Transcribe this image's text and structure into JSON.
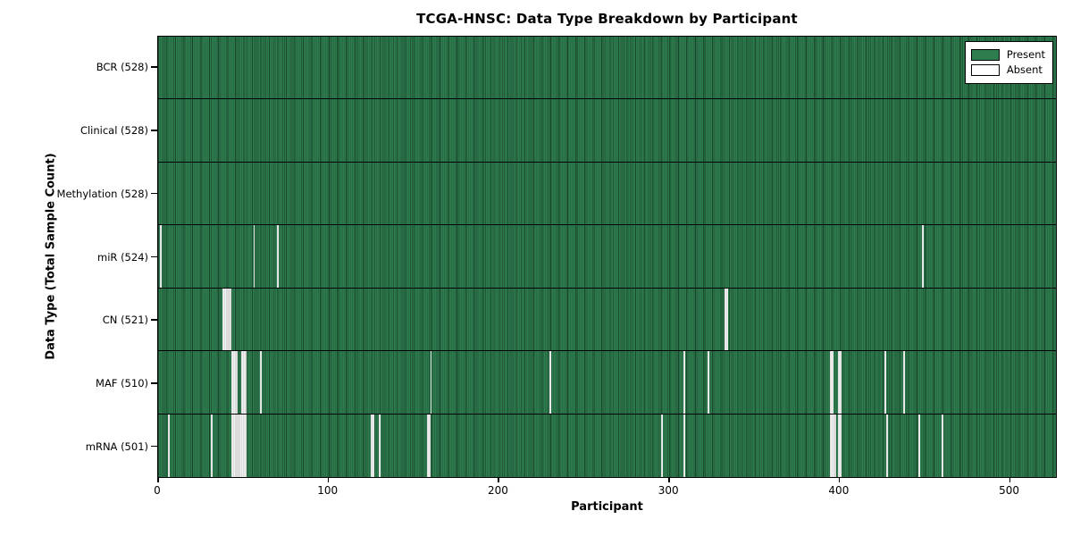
{
  "title": "TCGA-HNSC: Data Type Breakdown by Participant",
  "xlabel": "Participant",
  "ylabel": "Data Type (Total Sample Count)",
  "legend": {
    "present_label": "Present",
    "absent_label": "Absent"
  },
  "colors": {
    "present": "#2e7d4f",
    "absent": "#ffffff",
    "axis": "#000000",
    "legend_present_swatch": "#2e7d4f",
    "legend_absent_swatch": "#ffffff"
  },
  "chart_data": {
    "type": "heatmap",
    "title": "TCGA-HNSC: Data Type Breakdown by Participant",
    "xlabel": "Participant",
    "ylabel": "Data Type (Total Sample Count)",
    "xlim": [
      0,
      528
    ],
    "x_ticks": [
      0,
      100,
      200,
      300,
      400,
      500
    ],
    "total_participants": 528,
    "grid": false,
    "legend_position": "upper right",
    "legend": [
      {
        "label": "Present",
        "color": "#2e7d4f"
      },
      {
        "label": "Absent",
        "color": "#ffffff"
      }
    ],
    "value_encoding": "green bar = data present for participant, white gap = data absent",
    "rows": [
      {
        "label": "BCR (528)",
        "data_type": "BCR",
        "present_count": 528,
        "absent_count": 0,
        "absent_runs": []
      },
      {
        "label": "Clinical (528)",
        "data_type": "Clinical",
        "present_count": 528,
        "absent_count": 0,
        "absent_runs": []
      },
      {
        "label": "Methylation (528)",
        "data_type": "Methylation",
        "present_count": 528,
        "absent_count": 0,
        "absent_runs": []
      },
      {
        "label": "miR (524)",
        "data_type": "miR",
        "present_count": 524,
        "absent_count": 4,
        "absent_runs": [
          [
            1,
            1
          ],
          [
            56,
            1
          ],
          [
            70,
            1
          ],
          [
            449,
            1
          ]
        ]
      },
      {
        "label": "CN (521)",
        "data_type": "CN",
        "present_count": 521,
        "absent_count": 7,
        "absent_runs": [
          [
            38,
            5
          ],
          [
            333,
            2
          ]
        ]
      },
      {
        "label": "MAF (510)",
        "data_type": "MAF",
        "present_count": 510,
        "absent_count": 18,
        "absent_runs": [
          [
            43,
            4
          ],
          [
            49,
            3
          ],
          [
            60,
            1
          ],
          [
            160,
            1
          ],
          [
            230,
            1
          ],
          [
            309,
            1
          ],
          [
            323,
            1
          ],
          [
            395,
            2
          ],
          [
            400,
            2
          ],
          [
            427,
            1
          ],
          [
            438,
            1
          ]
        ]
      },
      {
        "label": "mRNA (501)",
        "data_type": "mRNA",
        "present_count": 501,
        "absent_count": 27,
        "absent_runs": [
          [
            6,
            1
          ],
          [
            31,
            1
          ],
          [
            43,
            9
          ],
          [
            125,
            2
          ],
          [
            130,
            1
          ],
          [
            158,
            2
          ],
          [
            296,
            1
          ],
          [
            309,
            1
          ],
          [
            395,
            4
          ],
          [
            400,
            2
          ],
          [
            428,
            1
          ],
          [
            447,
            1
          ],
          [
            461,
            1
          ]
        ]
      }
    ]
  }
}
